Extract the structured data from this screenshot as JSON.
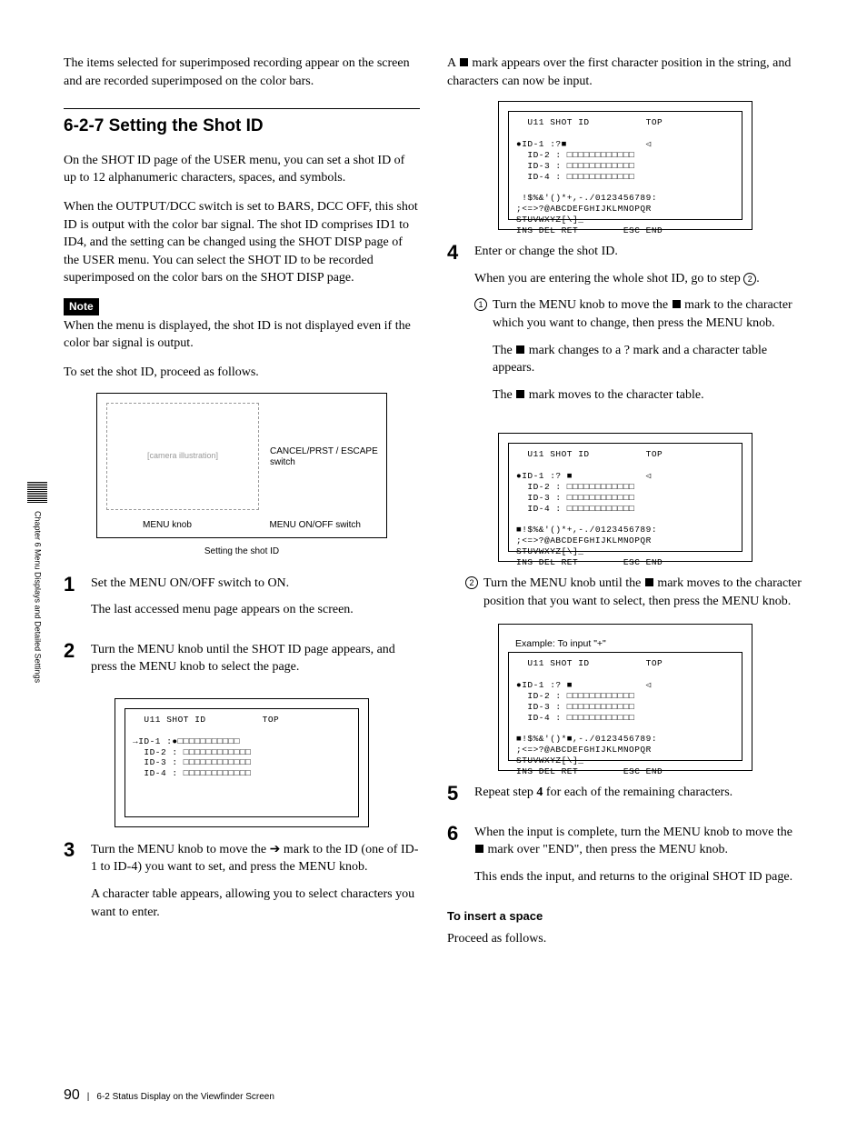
{
  "sidebar": {
    "chapter": "Chapter 6  Menu Displays and Detailed Settings"
  },
  "left": {
    "intro": "The items selected for superimposed recording appear on the screen and are recorded superimposed on the color bars.",
    "heading": "6-2-7  Setting the Shot ID",
    "p1": "On the SHOT ID page of the USER menu, you can set a shot ID of up to 12 alphanumeric characters, spaces, and symbols.",
    "p2": "When the OUTPUT/DCC switch is set to BARS, DCC OFF, this shot ID is output with the color bar signal. The shot ID comprises ID1 to ID4, and the setting can be changed using the SHOT DISP page of the USER menu. You can select the SHOT ID to be recorded superimposed on the color bars on the SHOT DISP page.",
    "note_badge": "Note",
    "note": "When the menu is displayed, the shot ID is not displayed even if the color bar signal is output.",
    "proceed": "To set the shot ID, proceed as follows.",
    "diagram": {
      "placeholder": "[camera illustration]",
      "label_cancel": "CANCEL/PRST / ESCAPE switch",
      "label_menu_knob": "MENU knob",
      "label_onoff": "MENU ON/OFF switch"
    },
    "caption": "Setting the shot ID",
    "step1": {
      "num": "1",
      "a": "Set the MENU ON/OFF switch to ON.",
      "b": "The last accessed menu page appears on the screen."
    },
    "step2": {
      "num": "2",
      "a": "Turn the MENU knob until the SHOT ID page appears, and press the MENU knob to select the page."
    },
    "lcd1_header": "  U11 SHOT ID          TOP",
    "lcd1_body": "→ID-1 :●□□□□□□□□□□□\n  ID-2 : □□□□□□□□□□□□\n  ID-3 : □□□□□□□□□□□□\n  ID-4 : □□□□□□□□□□□□",
    "step3": {
      "num": "3",
      "a_pre": "Turn the MENU knob to move the ",
      "a_post": " mark to the ID (one of ID-1 to ID-4) you want to set, and press the MENU knob.",
      "b": "A character table appears, allowing you to select characters you want to enter."
    }
  },
  "right": {
    "top_pre": "A ",
    "top_post": " mark appears over the first character position in the string, and characters can now be input.",
    "lcd2_header": "  U11 SHOT ID          TOP",
    "lcd2_body": "●ID-1 :?■              ◁\n  ID-2 : □□□□□□□□□□□□\n  ID-3 : □□□□□□□□□□□□\n  ID-4 : □□□□□□□□□□□□\n\n !$%&'()*+,-./0123456789:\n;<=>?@ABCDEFGHIJKLMNOPQR\nSTUVWXYZ[\\]_\nINS DEL RET        ESC END",
    "step4": {
      "num": "4",
      "a": "Enter or change the shot ID.",
      "b_pre": "When you are entering the whole shot ID, go to step ",
      "b_circ": "2",
      "b_post": "."
    },
    "sub1": {
      "circ": "1",
      "a_pre": "Turn the MENU knob to move the ",
      "a_post": " mark to the character which you want to change, then press the MENU knob.",
      "b_pre": "The ",
      "b_mid": " mark changes to a ? mark and a character table appears.",
      "c_pre": "The ",
      "c_post": " mark moves to the character table."
    },
    "lcd3_header": "  U11 SHOT ID          TOP",
    "lcd3_body": "●ID-1 :? ■             ◁\n  ID-2 : □□□□□□□□□□□□\n  ID-3 : □□□□□□□□□□□□\n  ID-4 : □□□□□□□□□□□□\n\n■!$%&'()*+,-./0123456789:\n;<=>?@ABCDEFGHIJKLMNOPQR\nSTUVWXYZ[\\]_\nINS DEL RET        ESC END",
    "sub2": {
      "circ": "2",
      "a_pre": "Turn the MENU knob until the ",
      "a_post": " mark moves to the character position that you want to select, then press the MENU knob."
    },
    "example_label": "Example: To input \"+\"",
    "lcd4_header": "  U11 SHOT ID          TOP",
    "lcd4_body": "●ID-1 :? ■             ◁\n  ID-2 : □□□□□□□□□□□□\n  ID-3 : □□□□□□□□□□□□\n  ID-4 : □□□□□□□□□□□□\n\n■!$%&'()*■,-./0123456789:\n;<=>?@ABCDEFGHIJKLMNOPQR\nSTUVWXYZ[\\]_\nINS DEL RET        ESC END",
    "step5": {
      "num": "5",
      "a": "Repeat step 4 for each of the remaining characters."
    },
    "step6": {
      "num": "6",
      "a_pre": "When the input is complete, turn the MENU knob to move the ",
      "a_post": " mark over \"END\", then press the MENU knob.",
      "b": "This ends the input, and returns to the original SHOT ID page."
    },
    "insert_head": "To insert a space",
    "insert_body": "Proceed as follows."
  },
  "footer": {
    "page": "90",
    "section": "6-2 Status Display on the Viewfinder Screen"
  }
}
